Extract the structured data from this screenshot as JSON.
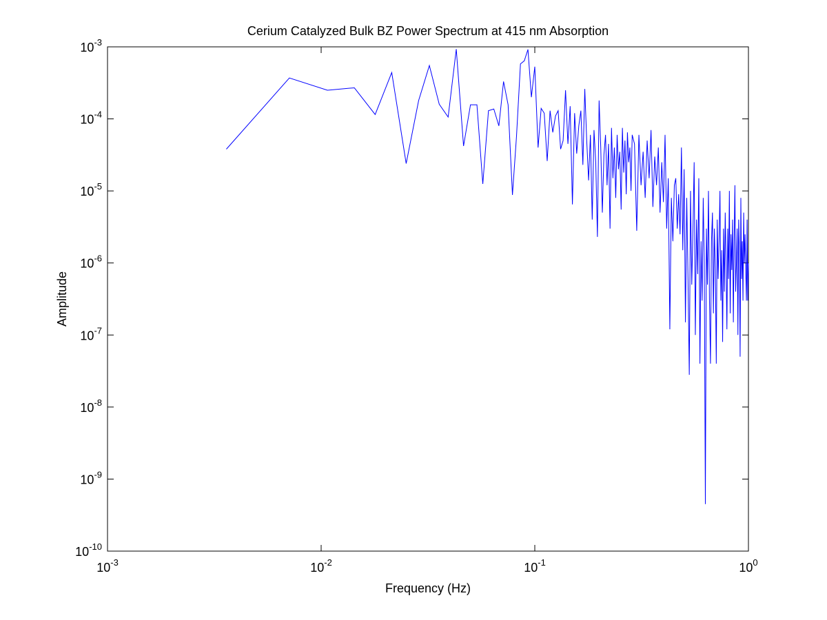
{
  "chart_data": {
    "type": "line",
    "title": "Cerium Catalyzed Bulk BZ Power Spectrum at 415 nm Absorption",
    "x_label": "Frequency (Hz)",
    "y_label": "Amplitude",
    "x_scale": "log",
    "y_scale": "log",
    "grid": false,
    "xlim": [
      0.001,
      1
    ],
    "ylim": [
      1e-10,
      0.001
    ],
    "xticks": [
      {
        "value": 0.001,
        "label": "10-3"
      },
      {
        "value": 0.01,
        "label": "10-2"
      },
      {
        "value": 0.1,
        "label": "10-1"
      },
      {
        "value": 1,
        "label": "100"
      }
    ],
    "yticks": [
      {
        "value": 1e-10,
        "label": "10-10"
      },
      {
        "value": 1e-09,
        "label": "10-9"
      },
      {
        "value": 1e-08,
        "label": "10-8"
      },
      {
        "value": 1e-07,
        "label": "10-7"
      },
      {
        "value": 1e-06,
        "label": "10-6"
      },
      {
        "value": 1e-05,
        "label": "10-5"
      },
      {
        "value": 0.0001,
        "label": "10-4"
      },
      {
        "value": 0.001,
        "label": "10-3"
      }
    ],
    "x": [
      0.0036,
      0.0071,
      0.0107,
      0.0143,
      0.0179,
      0.0214,
      0.025,
      0.0286,
      0.0321,
      0.0357,
      0.0393,
      0.0429,
      0.0464,
      0.05,
      0.0536,
      0.0571,
      0.0607,
      0.0643,
      0.0679,
      0.0714,
      0.075,
      0.0786,
      0.0821,
      0.0857,
      0.0893,
      0.0929,
      0.0964,
      0.1,
      0.1036,
      0.1071,
      0.1107,
      0.1143,
      0.1179,
      0.1214,
      0.125,
      0.1286,
      0.1321,
      0.1357,
      0.1393,
      0.1429,
      0.1464,
      0.15,
      0.1536,
      0.1571,
      0.1607,
      0.1643,
      0.1679,
      0.1714,
      0.175,
      0.1786,
      0.1821,
      0.1857,
      0.1893,
      0.1929,
      0.1964,
      0.2,
      0.2036,
      0.2071,
      0.2107,
      0.2143,
      0.2179,
      0.2214,
      0.225,
      0.2286,
      0.2321,
      0.2357,
      0.2393,
      0.2429,
      0.2464,
      0.25,
      0.2536,
      0.2571,
      0.2607,
      0.2643,
      0.2679,
      0.2714,
      0.275,
      0.2786,
      0.2821,
      0.2857,
      0.2929,
      0.3,
      0.3071,
      0.3143,
      0.3214,
      0.3286,
      0.3357,
      0.3429,
      0.35,
      0.3571,
      0.3643,
      0.3714,
      0.3786,
      0.3857,
      0.3929,
      0.4,
      0.4071,
      0.4143,
      0.4214,
      0.4286,
      0.4357,
      0.4429,
      0.45,
      0.4571,
      0.4643,
      0.4714,
      0.4786,
      0.4857,
      0.4929,
      0.5,
      0.5071,
      0.5143,
      0.5214,
      0.5286,
      0.5357,
      0.5429,
      0.55,
      0.5571,
      0.5643,
      0.5714,
      0.5786,
      0.5857,
      0.5929,
      0.6,
      0.6071,
      0.6143,
      0.6214,
      0.6286,
      0.6357,
      0.6429,
      0.65,
      0.6571,
      0.6643,
      0.6714,
      0.6786,
      0.6857,
      0.6929,
      0.7,
      0.7071,
      0.7143,
      0.7214,
      0.7286,
      0.7357,
      0.7429,
      0.75,
      0.7571,
      0.7643,
      0.7714,
      0.7786,
      0.7857,
      0.7929,
      0.8,
      0.8071,
      0.8143,
      0.8214,
      0.8286,
      0.8357,
      0.8429,
      0.85,
      0.8571,
      0.8643,
      0.8714,
      0.8786,
      0.8857,
      0.8929,
      0.9,
      0.9071,
      0.9143,
      0.9214,
      0.9286,
      0.9357,
      0.9429,
      0.95,
      0.9571,
      0.9643,
      0.9714,
      0.9786,
      0.9857,
      0.9929,
      1
    ],
    "series": [
      {
        "color": "#0000ff",
        "values": [
          3.8e-05,
          0.00037,
          0.00025,
          0.00027,
          0.000115,
          0.00044,
          2.4e-05,
          0.00018,
          0.00055,
          0.00016,
          0.000106,
          0.00093,
          4.2e-05,
          0.000157,
          0.000157,
          1.25e-05,
          0.00013,
          0.000137,
          8e-05,
          0.00033,
          0.000157,
          8.8e-06,
          5.7e-05,
          0.00058,
          0.00064,
          0.00092,
          0.0002,
          0.00053,
          4e-05,
          0.00014,
          0.00012,
          2.6e-05,
          0.00013,
          6.5e-05,
          0.00011,
          0.00013,
          3.8e-05,
          5e-05,
          0.00025,
          4.5e-05,
          0.00015,
          6.5e-06,
          0.00012,
          3.3e-05,
          8e-05,
          0.00013,
          2.3e-05,
          0.00026,
          5e-05,
          1.4e-05,
          6e-05,
          4e-06,
          7e-05,
          2.5e-05,
          2.3e-06,
          0.00018,
          4e-05,
          5e-06,
          3.2e-05,
          6e-05,
          1.2e-05,
          4.5e-05,
          3e-06,
          7.5e-05,
          1.5e-05,
          4e-05,
          8e-06,
          6e-05,
          2e-05,
          3.5e-05,
          5.5e-06,
          7.5e-05,
          1.8e-05,
          5e-05,
          9e-06,
          6.5e-05,
          2.5e-05,
          4e-05,
          1e-05,
          6e-05,
          4.5e-05,
          2.8e-06,
          6e-05,
          1.2e-05,
          3.5e-05,
          8e-06,
          5e-05,
          1.5e-05,
          7e-05,
          6e-06,
          3e-05,
          1.2e-05,
          4e-05,
          5e-06,
          2.5e-05,
          7e-06,
          6e-05,
          3e-06,
          1.5e-05,
          1.2e-07,
          8e-06,
          2e-06,
          1.2e-05,
          1.5e-05,
          3e-06,
          9e-06,
          2.5e-06,
          4e-05,
          1.5e-06,
          2e-05,
          1.5e-07,
          8e-06,
          6e-07,
          2.8e-08,
          1e-05,
          5e-07,
          3e-06,
          2.5e-05,
          1e-07,
          4e-06,
          7e-07,
          1.5e-05,
          4e-08,
          2e-06,
          3e-07,
          8e-06,
          1e-06,
          4.5e-10,
          3e-06,
          5e-07,
          1e-05,
          3e-07,
          4e-08,
          2e-06,
          5e-06,
          2e-07,
          3e-06,
          8e-07,
          4e-08,
          4e-06,
          6e-07,
          2e-06,
          1e-05,
          3e-07,
          1.5e-06,
          8e-08,
          3e-06,
          4e-07,
          5e-06,
          1e-06,
          1.2e-07,
          3e-06,
          6e-07,
          1e-05,
          2e-07,
          2.5e-06,
          8e-07,
          4e-06,
          1.5e-07,
          2e-06,
          1.2e-05,
          4e-07,
          1e-06,
          3e-06,
          1e-07,
          4e-06,
          1.5e-06,
          5e-08,
          8e-06,
          6e-07,
          2e-06,
          3e-07,
          5e-06,
          1e-06,
          2.5e-06,
          8e-07,
          3e-07,
          4e-06,
          3e-07,
          1e-06
        ]
      }
    ]
  }
}
